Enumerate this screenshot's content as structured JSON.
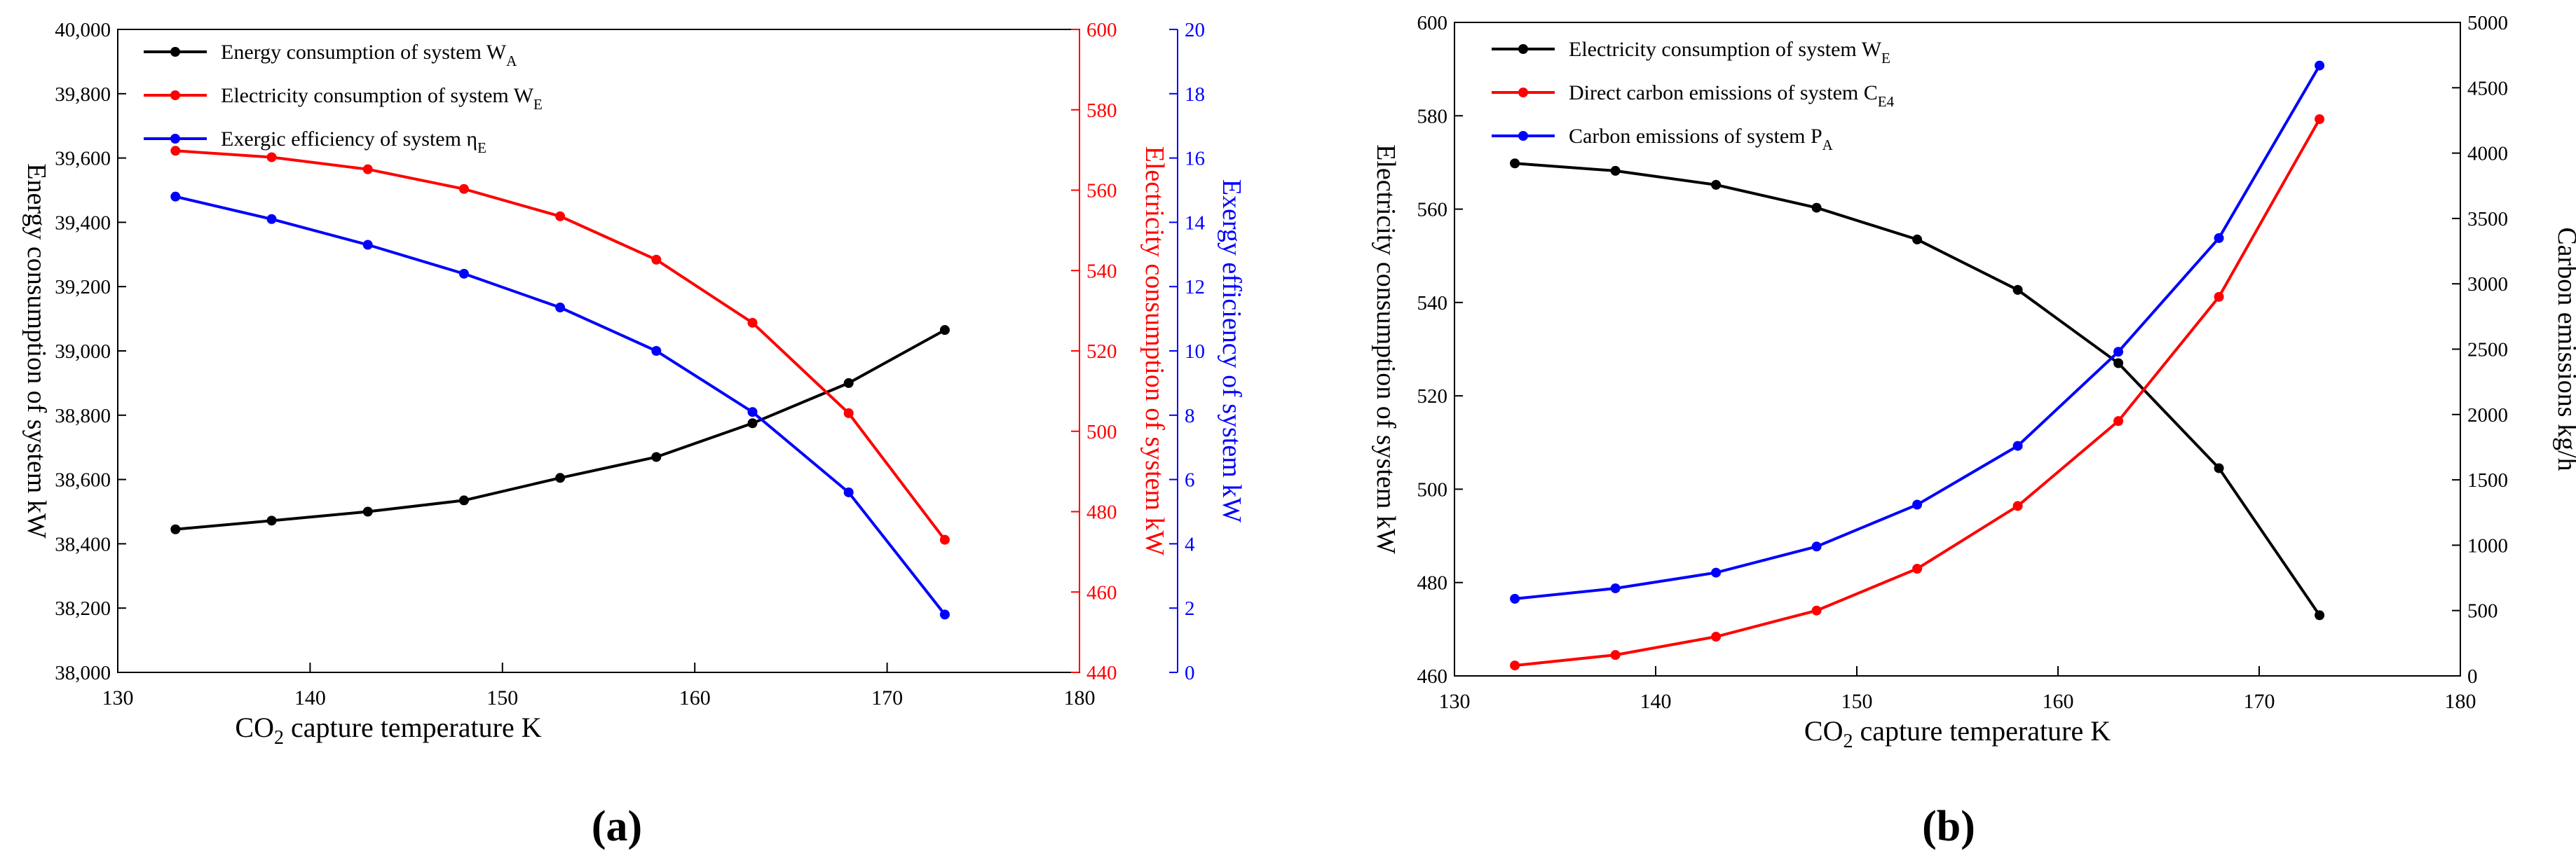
{
  "chart_data": [
    {
      "id": "a",
      "type": "line",
      "panel_label": "(a)",
      "x": [
        133,
        138,
        143,
        148,
        153,
        158,
        163,
        168,
        173
      ],
      "xlim": [
        130,
        180
      ],
      "x_ticks": [
        "130",
        "140",
        "150",
        "160",
        "170",
        "180"
      ],
      "xlabel": {
        "pre": "CO",
        "sub": "2",
        "post": " capture temperature  K"
      },
      "axes": {
        "left": {
          "label": "Energy consumption of system kW",
          "lim": [
            38000,
            40000
          ],
          "ticks": [
            "38,000",
            "38,200",
            "38,400",
            "38,600",
            "38,800",
            "39,000",
            "39,200",
            "39,400",
            "39,600",
            "39,800",
            "40,000"
          ],
          "color": "#000000"
        },
        "right1": {
          "label": "Electricity consumption of system kW",
          "lim": [
            440,
            600
          ],
          "ticks": [
            "440",
            "460",
            "480",
            "500",
            "520",
            "540",
            "560",
            "580",
            "600"
          ],
          "color": "#ff0000"
        },
        "right2": {
          "label": "Exergy efficiency of system kW",
          "lim": [
            0,
            20
          ],
          "ticks": [
            "0",
            "2",
            "4",
            "6",
            "8",
            "10",
            "12",
            "14",
            "16",
            "18",
            "20"
          ],
          "color": "#0000ff"
        }
      },
      "series": [
        {
          "axis": "left",
          "name": "Energy consumption of system W",
          "sub": "A",
          "color": "#000000",
          "values": [
            38445,
            38472,
            38500,
            38535,
            38605,
            38670,
            38775,
            38900,
            39065
          ]
        },
        {
          "axis": "right1",
          "name": "Electricity consumption of system W",
          "sub": "E",
          "color": "#ff0000",
          "values": [
            569.8,
            568.2,
            565.2,
            560.3,
            553.5,
            542.7,
            527,
            504.5,
            473
          ]
        },
        {
          "axis": "right2",
          "name": "Exergic efficiency of system η",
          "sub": "E",
          "color": "#0000ff",
          "values": [
            14.8,
            14.1,
            13.3,
            12.4,
            11.35,
            10,
            8.1,
            5.6,
            1.8
          ]
        }
      ]
    },
    {
      "id": "b",
      "type": "line",
      "panel_label": "(b)",
      "x": [
        133,
        138,
        143,
        148,
        153,
        158,
        163,
        168,
        173
      ],
      "xlim": [
        130,
        180
      ],
      "x_ticks": [
        "130",
        "140",
        "150",
        "160",
        "170",
        "180"
      ],
      "xlabel": {
        "pre": "CO",
        "sub": "2",
        "post": " capture temperature K"
      },
      "axes": {
        "left": {
          "label": "Electricity consumption of system kW",
          "lim": [
            460,
            600
          ],
          "ticks": [
            "460",
            "480",
            "500",
            "520",
            "540",
            "560",
            "580",
            "600"
          ],
          "color": "#000000"
        },
        "right": {
          "label": "Carbon emissions kg/h",
          "lim": [
            0,
            5000
          ],
          "ticks": [
            "0",
            "500",
            "1000",
            "1500",
            "2000",
            "2500",
            "3000",
            "3500",
            "4000",
            "4500",
            "5000"
          ],
          "color": "#000000"
        }
      },
      "series": [
        {
          "axis": "left",
          "name": "Electricity consumption of system W",
          "sub": "E",
          "color": "#000000",
          "values": [
            569.8,
            568.2,
            565.2,
            560.3,
            553.5,
            542.7,
            527,
            504.5,
            473
          ]
        },
        {
          "axis": "right",
          "name": "Direct carbon emissions of system C",
          "sub": "E4",
          "color": "#ff0000",
          "values": [
            80,
            160,
            300,
            500,
            820,
            1300,
            1950,
            2900,
            4260
          ]
        },
        {
          "axis": "right",
          "name": "Carbon emissions of system P",
          "sub": "A",
          "color": "#0000ff",
          "values": [
            590,
            670,
            790,
            990,
            1310,
            1760,
            2480,
            3350,
            4670
          ]
        }
      ]
    }
  ]
}
